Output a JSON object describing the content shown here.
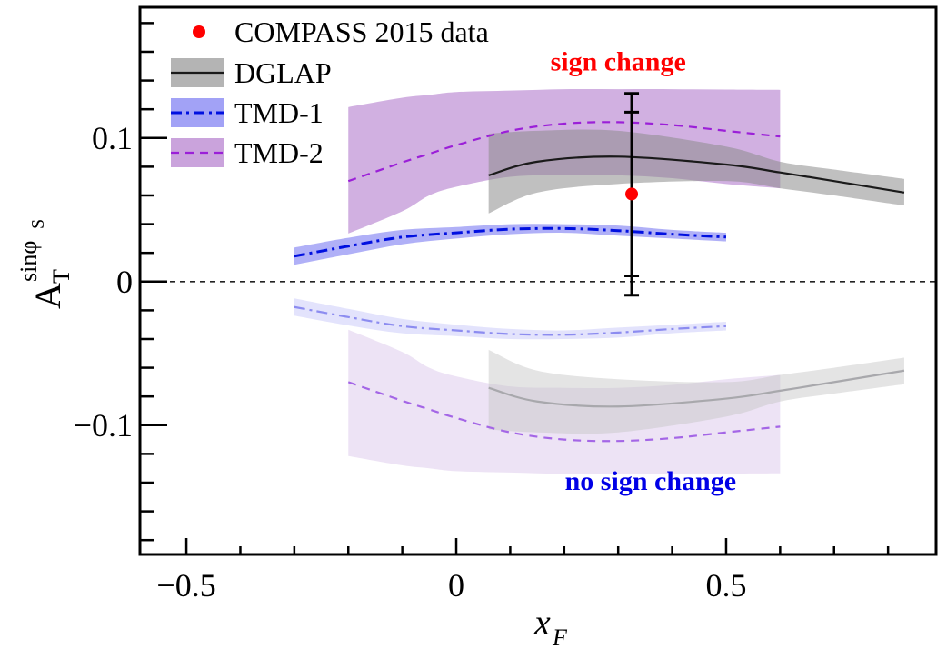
{
  "chart_data": {
    "type": "line",
    "title": "",
    "xlabel": "x_F",
    "ylabel": "A_T^{sin φ_S}",
    "xlim": [
      -0.586,
      0.889
    ],
    "ylim": [
      -0.19,
      0.191
    ],
    "xticks_major": [
      -0.5,
      0,
      0.5
    ],
    "xtick_labels": [
      "−0.5",
      "0",
      "0.5"
    ],
    "yticks_major": [
      -0.1,
      0,
      0.1
    ],
    "ytick_labels": [
      "−0.1",
      "0",
      "0.1"
    ],
    "grid": false,
    "legend_position": "top-left",
    "reference_line": {
      "y": 0,
      "style": "dashed"
    },
    "legend": [
      {
        "label": "COMPASS 2015 data",
        "kind": "point",
        "color": "#ff0000"
      },
      {
        "label": "DGLAP",
        "kind": "band-line",
        "line": "solid",
        "color": "#000000",
        "band": "#b4b4b4"
      },
      {
        "label": "TMD-1",
        "kind": "band-line",
        "line": "dashdot",
        "color": "#0000e6",
        "band": "#a8a8f8"
      },
      {
        "label": "TMD-2",
        "kind": "band-line",
        "line": "dashed",
        "color": "#a020d0",
        "band": "#c8a0dc"
      }
    ],
    "data_points": [
      {
        "name": "COMPASS 2015 data",
        "x": 0.325,
        "y": 0.061,
        "err_total": [
          0.131,
          -0.0095
        ],
        "err_stat": [
          0.118,
          0.004
        ]
      }
    ],
    "series": [
      {
        "name": "TMD-2",
        "sign": "positive",
        "x": [
          -0.2,
          -0.1,
          -0.05,
          0.0,
          0.1,
          0.2,
          0.3,
          0.4,
          0.5,
          0.6
        ],
        "y": [
          0.07,
          0.083,
          0.089,
          0.095,
          0.105,
          0.11,
          0.111,
          0.109,
          0.105,
          0.101
        ],
        "upper": [
          0.1215,
          0.128,
          0.13,
          0.132,
          0.133,
          0.134,
          0.134,
          0.134,
          0.1337,
          0.1335
        ],
        "lower": [
          0.0335,
          0.049,
          0.06,
          0.066,
          0.073,
          0.074,
          0.074,
          0.072,
          0.068,
          0.065
        ]
      },
      {
        "name": "DGLAP",
        "sign": "positive",
        "x": [
          0.06,
          0.15,
          0.3,
          0.5,
          0.6,
          0.7,
          0.83
        ],
        "y": [
          0.074,
          0.0835,
          0.087,
          0.0815,
          0.076,
          0.07,
          0.062
        ],
        "upper": [
          0.103,
          0.105,
          0.105,
          0.094,
          0.0835,
          0.078,
          0.0715
        ],
        "lower": [
          0.0475,
          0.062,
          0.068,
          0.07,
          0.065,
          0.06,
          0.053
        ]
      },
      {
        "name": "TMD-1",
        "sign": "positive",
        "x": [
          -0.3,
          -0.2,
          -0.1,
          0.0,
          0.1,
          0.2,
          0.3,
          0.4,
          0.5
        ],
        "y": [
          0.0177,
          0.0247,
          0.031,
          0.034,
          0.0365,
          0.037,
          0.0355,
          0.033,
          0.031
        ],
        "upper": [
          0.0237,
          0.0305,
          0.036,
          0.038,
          0.04,
          0.04,
          0.039,
          0.036,
          0.034
        ],
        "lower": [
          0.0117,
          0.019,
          0.026,
          0.03,
          0.033,
          0.034,
          0.032,
          0.03,
          0.028
        ]
      },
      {
        "name": "TMD-2 (mirror)",
        "sign": "negative",
        "x": [
          -0.2,
          -0.1,
          -0.05,
          0.0,
          0.1,
          0.2,
          0.3,
          0.4,
          0.5,
          0.6
        ],
        "y": [
          -0.07,
          -0.083,
          -0.089,
          -0.095,
          -0.105,
          -0.11,
          -0.111,
          -0.109,
          -0.105,
          -0.101
        ],
        "upper": [
          -0.0335,
          -0.049,
          -0.06,
          -0.066,
          -0.073,
          -0.074,
          -0.074,
          -0.072,
          -0.068,
          -0.065
        ],
        "lower": [
          -0.1215,
          -0.128,
          -0.13,
          -0.132,
          -0.133,
          -0.134,
          -0.134,
          -0.134,
          -0.1337,
          -0.1335
        ]
      },
      {
        "name": "DGLAP (mirror)",
        "sign": "negative",
        "x": [
          0.06,
          0.15,
          0.3,
          0.5,
          0.6,
          0.7,
          0.83
        ],
        "y": [
          -0.074,
          -0.0835,
          -0.087,
          -0.0815,
          -0.076,
          -0.07,
          -0.062
        ],
        "upper": [
          -0.0475,
          -0.062,
          -0.068,
          -0.07,
          -0.065,
          -0.06,
          -0.053
        ],
        "lower": [
          -0.103,
          -0.105,
          -0.105,
          -0.094,
          -0.0835,
          -0.078,
          -0.0715
        ]
      },
      {
        "name": "TMD-1 (mirror)",
        "sign": "negative",
        "x": [
          -0.3,
          -0.2,
          -0.1,
          0.0,
          0.1,
          0.2,
          0.3,
          0.4,
          0.5
        ],
        "y": [
          -0.0177,
          -0.0247,
          -0.031,
          -0.034,
          -0.0365,
          -0.037,
          -0.0355,
          -0.033,
          -0.031
        ],
        "upper": [
          -0.0117,
          -0.019,
          -0.026,
          -0.03,
          -0.033,
          -0.034,
          -0.032,
          -0.03,
          -0.028
        ],
        "lower": [
          -0.0237,
          -0.0305,
          -0.036,
          -0.038,
          -0.04,
          -0.04,
          -0.039,
          -0.036,
          -0.034
        ]
      }
    ],
    "annotations": [
      {
        "text": "sign change",
        "x": 0.3,
        "y": 0.147,
        "color": "#ff0000"
      },
      {
        "text": "no sign change",
        "x": 0.36,
        "y": -0.145,
        "color": "#0000e6"
      }
    ]
  },
  "labels": {
    "ylabel_main": "A",
    "ylabel_sub": "T",
    "ylabel_sup": "sinφ",
    "ylabel_sup_sub": "S",
    "xlabel_main": "x",
    "xlabel_sub": "F"
  }
}
